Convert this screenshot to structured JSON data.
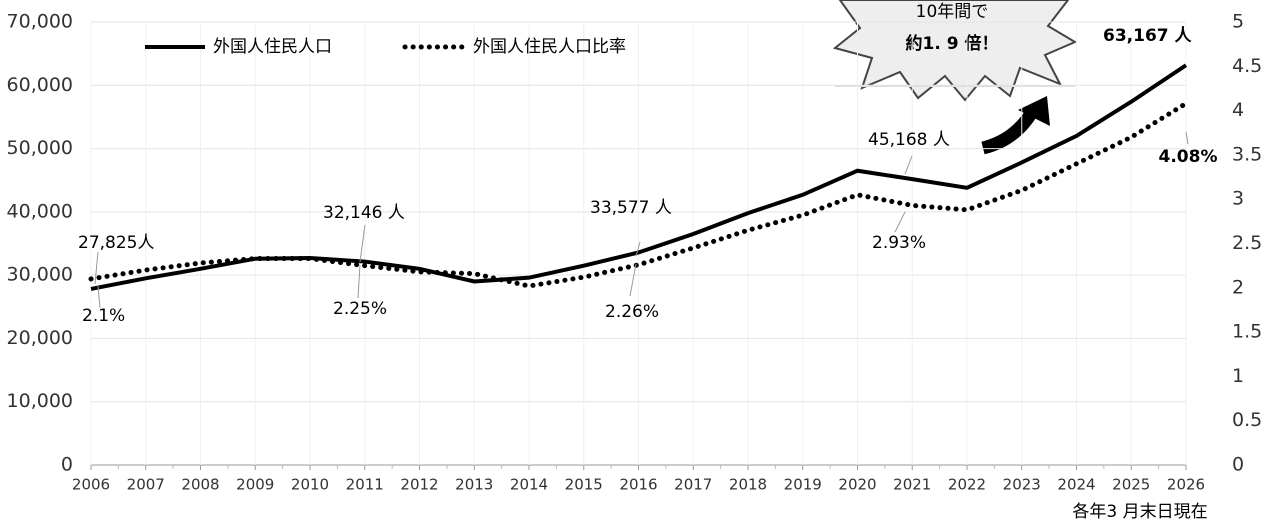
{
  "chart_data": {
    "type": "line",
    "categories": [
      "2006",
      "2007",
      "2008",
      "2009",
      "2010",
      "2011",
      "2012",
      "2013",
      "2014",
      "2015",
      "2016",
      "2017",
      "2018",
      "2019",
      "2020",
      "2021",
      "2022",
      "2023",
      "2024",
      "2025",
      "2026"
    ],
    "series": [
      {
        "name": "外国人住民人口",
        "color": "#000000",
        "style": "solid",
        "values": [
          27825,
          29500,
          31000,
          32600,
          32700,
          32146,
          31000,
          29000,
          29600,
          31500,
          33577,
          36500,
          39800,
          42700,
          46500,
          45168,
          43800,
          47800,
          52000,
          57400,
          63167
        ],
        "value_labels": [
          "27,825人",
          null,
          null,
          null,
          null,
          "32,146 人",
          null,
          null,
          null,
          null,
          "33,577 人",
          null,
          null,
          null,
          null,
          "45,168 人",
          null,
          null,
          null,
          null,
          "63,167 人"
        ]
      },
      {
        "name": "外国人住民人口比率",
        "color": "#000000",
        "style": "dotted",
        "axis": "y2",
        "values": [
          2.1,
          2.2,
          2.28,
          2.33,
          2.33,
          2.25,
          2.18,
          2.16,
          2.02,
          2.12,
          2.26,
          2.45,
          2.65,
          2.82,
          3.05,
          2.93,
          2.88,
          3.1,
          3.4,
          3.7,
          4.08
        ],
        "value_labels": [
          "2.1%",
          null,
          null,
          null,
          null,
          "2.25%",
          null,
          null,
          null,
          null,
          "2.26%",
          null,
          null,
          null,
          null,
          "2.93%",
          null,
          null,
          null,
          null,
          "4.08%"
        ]
      }
    ],
    "ylim": [
      0,
      70000
    ],
    "yticks": [
      0,
      {
        "value": 10000,
        "label": "10,000"
      },
      {
        "value": 20000,
        "label": "20,000"
      },
      {
        "value": 30000,
        "label": "30,000"
      },
      {
        "value": 40000,
        "label": "40,000"
      },
      {
        "value": 50000,
        "label": "50,000"
      },
      {
        "value": 60000,
        "label": "60,000"
      },
      {
        "value": 70000,
        "label": "70,000"
      }
    ],
    "y2lim": [
      0,
      5
    ],
    "y2ticks": [
      0,
      0.5,
      1,
      1.5,
      2,
      2.5,
      3,
      3.5,
      4,
      4.5,
      5
    ],
    "grid": true,
    "legend": "top-left",
    "annotations": [
      "10年間で",
      "約1. 9 倍！",
      "各年3 月末日現在"
    ]
  }
}
